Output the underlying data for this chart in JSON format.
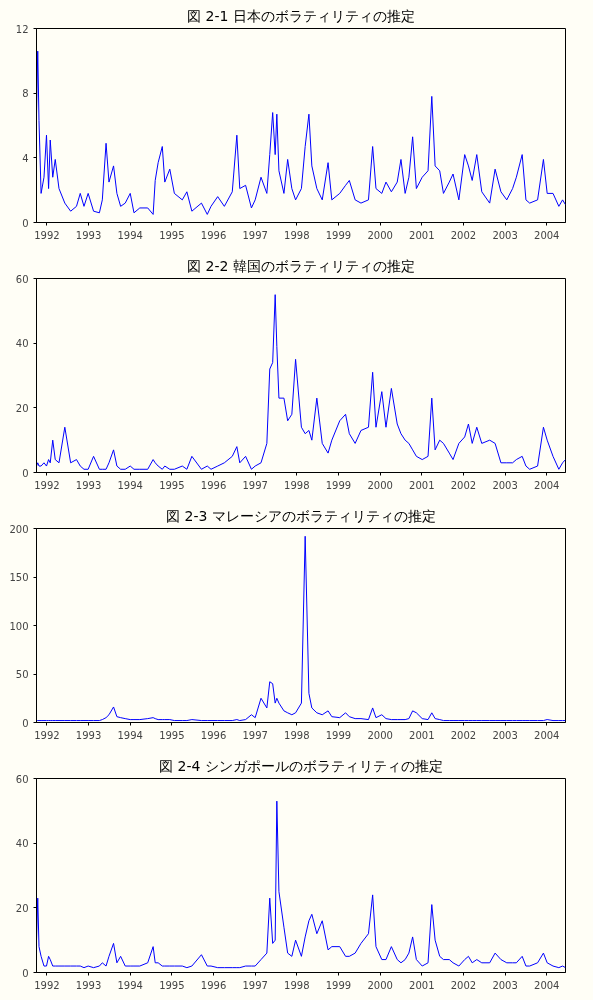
{
  "chart_data": [
    {
      "type": "line",
      "title": "図 2-1 日本のボラティリティの推定",
      "color": "#0000ff",
      "xlim": [
        1991.75,
        2004.45
      ],
      "xticks": [
        1992,
        1993,
        1994,
        1995,
        1996,
        1997,
        1998,
        1999,
        2000,
        2001,
        2002,
        2003,
        2004
      ],
      "ylim": [
        0,
        12
      ],
      "yticks": [
        0,
        4,
        8,
        12
      ],
      "grid": false,
      "x": [
        1991.75,
        1991.78,
        1991.81,
        1991.86,
        1991.93,
        1991.99,
        1992.04,
        1992.08,
        1992.14,
        1992.2,
        1992.29,
        1992.43,
        1992.57,
        1992.71,
        1992.8,
        1992.89,
        1992.99,
        1993.12,
        1993.26,
        1993.33,
        1993.42,
        1993.49,
        1993.6,
        1993.68,
        1993.77,
        1993.88,
        1994.0,
        1994.09,
        1994.23,
        1994.42,
        1994.55,
        1994.6,
        1994.67,
        1994.77,
        1994.83,
        1994.95,
        1995.06,
        1995.25,
        1995.36,
        1995.48,
        1995.71,
        1995.85,
        1995.94,
        1996.1,
        1996.26,
        1996.45,
        1996.56,
        1996.63,
        1996.77,
        1996.91,
        1997.0,
        1997.14,
        1997.28,
        1997.35,
        1997.42,
        1997.48,
        1997.52,
        1997.57,
        1997.69,
        1997.78,
        1997.88,
        1997.97,
        1998.11,
        1998.2,
        1998.29,
        1998.36,
        1998.48,
        1998.61,
        1998.75,
        1998.84,
        1999.03,
        1999.17,
        1999.26,
        1999.4,
        1999.54,
        1999.72,
        1999.82,
        1999.9,
        2000.04,
        2000.14,
        2000.27,
        2000.41,
        2000.5,
        2000.6,
        2000.69,
        2000.78,
        2000.87,
        2001.01,
        2001.15,
        2001.24,
        2001.32,
        2001.43,
        2001.52,
        2001.66,
        2001.75,
        2001.89,
        2002.03,
        2002.12,
        2002.21,
        2002.32,
        2002.44,
        2002.63,
        2002.76,
        2002.9,
        2003.04,
        2003.18,
        2003.27,
        2003.41,
        2003.5,
        2003.59,
        2003.78,
        2003.92,
        2004.01,
        2004.15,
        2004.29,
        2004.38,
        2004.45
      ],
      "values": [
        6.7,
        10.6,
        6.3,
        1.8,
        2.8,
        5.4,
        2.1,
        5.1,
        2.8,
        3.9,
        2.1,
        1.2,
        0.7,
        1.0,
        1.8,
        1.0,
        1.8,
        0.7,
        0.6,
        1.4,
        4.9,
        2.5,
        3.5,
        1.8,
        1.0,
        1.2,
        1.8,
        0.6,
        0.9,
        0.9,
        0.5,
        2.6,
        3.7,
        4.7,
        2.5,
        3.3,
        1.8,
        1.4,
        1.9,
        0.7,
        1.2,
        0.5,
        1.0,
        1.6,
        1.0,
        1.9,
        5.4,
        2.1,
        2.3,
        0.9,
        1.4,
        2.8,
        1.8,
        4.2,
        6.8,
        4.2,
        6.7,
        3.2,
        1.8,
        3.9,
        2.1,
        1.4,
        2.1,
        4.7,
        6.7,
        3.5,
        2.1,
        1.4,
        3.7,
        1.4,
        1.8,
        2.3,
        2.6,
        1.4,
        1.2,
        1.4,
        4.7,
        2.1,
        1.8,
        2.5,
        1.9,
        2.5,
        3.9,
        1.8,
        2.8,
        5.3,
        2.1,
        2.8,
        3.2,
        7.8,
        3.5,
        3.2,
        1.8,
        2.5,
        3.0,
        1.4,
        4.2,
        3.5,
        2.6,
        4.2,
        1.9,
        1.2,
        3.3,
        1.9,
        1.4,
        2.1,
        2.8,
        4.2,
        1.4,
        1.2,
        1.4,
        3.9,
        1.8,
        1.8,
        1.0,
        1.4,
        1.1
      ]
    },
    {
      "type": "line",
      "title": "図 2-2 韓国のボラティリティの推定",
      "color": "#0000ff",
      "xlim": [
        1991.75,
        2004.45
      ],
      "xticks": [
        1992,
        1993,
        1994,
        1995,
        1996,
        1997,
        1998,
        1999,
        2000,
        2001,
        2002,
        2003,
        2004
      ],
      "ylim": [
        0,
        60
      ],
      "yticks": [
        0,
        20,
        40,
        60
      ],
      "grid": false,
      "x": [
        1991.75,
        1991.78,
        1991.81,
        1991.86,
        1991.93,
        1991.99,
        1992.04,
        1992.08,
        1992.14,
        1992.2,
        1992.29,
        1992.43,
        1992.57,
        1992.71,
        1992.8,
        1992.89,
        1992.99,
        1993.12,
        1993.26,
        1993.33,
        1993.42,
        1993.49,
        1993.6,
        1993.68,
        1993.77,
        1993.88,
        1994.0,
        1994.09,
        1994.23,
        1994.42,
        1994.55,
        1994.6,
        1994.67,
        1994.77,
        1994.83,
        1994.95,
        1995.06,
        1995.25,
        1995.36,
        1995.48,
        1995.71,
        1995.85,
        1995.94,
        1996.1,
        1996.26,
        1996.45,
        1996.56,
        1996.63,
        1996.77,
        1996.91,
        1997.0,
        1997.14,
        1997.28,
        1997.35,
        1997.42,
        1997.48,
        1997.52,
        1997.57,
        1997.69,
        1997.78,
        1997.88,
        1997.97,
        1998.11,
        1998.2,
        1998.29,
        1998.36,
        1998.48,
        1998.61,
        1998.75,
        1998.84,
        1999.03,
        1999.17,
        1999.26,
        1999.4,
        1999.54,
        1999.72,
        1999.82,
        1999.9,
        2000.04,
        2000.14,
        2000.27,
        2000.41,
        2000.5,
        2000.6,
        2000.69,
        2000.78,
        2000.87,
        2001.01,
        2001.15,
        2001.24,
        2001.32,
        2001.43,
        2001.52,
        2001.66,
        2001.75,
        2001.89,
        2002.03,
        2002.12,
        2002.21,
        2002.32,
        2002.44,
        2002.63,
        2002.76,
        2002.9,
        2003.04,
        2003.18,
        2003.27,
        2003.41,
        2003.5,
        2003.59,
        2003.78,
        2003.92,
        2004.01,
        2004.15,
        2004.29,
        2004.38,
        2004.45
      ],
      "values": [
        2,
        3,
        2,
        2,
        3,
        2,
        4,
        3,
        10,
        4,
        3,
        14,
        3,
        4,
        2,
        1,
        1,
        5,
        1,
        1,
        1,
        3,
        7,
        2,
        1,
        1,
        2,
        1,
        1,
        1,
        4,
        3,
        2,
        1,
        2,
        1,
        1,
        2,
        1,
        5,
        1,
        2,
        1,
        2,
        3,
        5,
        8,
        3,
        5,
        1,
        2,
        3,
        9,
        32,
        34,
        55,
        39,
        23,
        23,
        16,
        18,
        35,
        14,
        12,
        13,
        10,
        23,
        9,
        6,
        10,
        16,
        18,
        12,
        9,
        13,
        14,
        31,
        14,
        25,
        14,
        26,
        15,
        12,
        10,
        9,
        7,
        5,
        4,
        5,
        23,
        7,
        10,
        9,
        6,
        4,
        9,
        11,
        15,
        9,
        14,
        9,
        10,
        9,
        3,
        3,
        3,
        4,
        5,
        2,
        1,
        2,
        14,
        10,
        5,
        1,
        3,
        4
      ]
    },
    {
      "type": "line",
      "title": "図 2-3 マレーシアのボラティリティの推定",
      "color": "#0000ff",
      "xlim": [
        1991.75,
        2004.45
      ],
      "xticks": [
        1992,
        1993,
        1994,
        1995,
        1996,
        1997,
        1998,
        1999,
        2000,
        2001,
        2002,
        2003,
        2004
      ],
      "ylim": [
        0,
        200
      ],
      "yticks": [
        0,
        50,
        100,
        150,
        200
      ],
      "grid": false,
      "x": [
        1991.75,
        1991.78,
        1991.81,
        1991.86,
        1991.93,
        1991.99,
        1992.04,
        1992.08,
        1992.14,
        1992.2,
        1992.29,
        1992.43,
        1992.57,
        1992.71,
        1992.8,
        1992.89,
        1992.99,
        1993.12,
        1993.26,
        1993.33,
        1993.42,
        1993.49,
        1993.6,
        1993.68,
        1993.77,
        1993.88,
        1994.0,
        1994.09,
        1994.23,
        1994.42,
        1994.55,
        1994.6,
        1994.67,
        1994.77,
        1994.83,
        1994.95,
        1995.06,
        1995.25,
        1995.36,
        1995.48,
        1995.71,
        1995.85,
        1995.94,
        1996.1,
        1996.26,
        1996.45,
        1996.56,
        1996.63,
        1996.77,
        1996.91,
        1997.0,
        1997.14,
        1997.28,
        1997.35,
        1997.42,
        1997.48,
        1997.52,
        1997.57,
        1997.69,
        1997.78,
        1997.88,
        1997.97,
        1998.11,
        1998.2,
        1998.29,
        1998.36,
        1998.48,
        1998.61,
        1998.75,
        1998.84,
        1999.03,
        1999.17,
        1999.26,
        1999.4,
        1999.54,
        1999.72,
        1999.82,
        1999.9,
        2000.04,
        2000.14,
        2000.27,
        2000.41,
        2000.5,
        2000.6,
        2000.69,
        2000.78,
        2000.87,
        2001.01,
        2001.15,
        2001.24,
        2001.32,
        2001.43,
        2001.52,
        2001.66,
        2001.75,
        2001.89,
        2002.03,
        2002.12,
        2002.21,
        2002.32,
        2002.44,
        2002.63,
        2002.76,
        2002.9,
        2003.04,
        2003.18,
        2003.27,
        2003.41,
        2003.5,
        2003.59,
        2003.78,
        2003.92,
        2004.01,
        2004.15,
        2004.29,
        2004.38,
        2004.45
      ],
      "values": [
        2,
        2,
        2,
        2,
        2,
        2,
        2,
        2,
        2,
        2,
        2,
        2,
        2,
        2,
        2,
        2,
        2,
        2,
        2,
        3,
        5,
        8,
        16,
        6,
        5,
        4,
        3,
        3,
        3,
        4,
        5,
        4,
        3,
        3,
        3,
        3,
        2,
        2,
        2,
        3,
        2,
        2,
        2,
        2,
        2,
        2,
        3,
        2,
        3,
        8,
        5,
        25,
        15,
        42,
        40,
        20,
        25,
        20,
        12,
        10,
        8,
        10,
        20,
        192,
        30,
        15,
        10,
        8,
        12,
        6,
        5,
        10,
        6,
        4,
        4,
        3,
        15,
        5,
        8,
        4,
        3,
        3,
        3,
        3,
        4,
        12,
        10,
        4,
        3,
        10,
        4,
        3,
        2,
        2,
        2,
        2,
        2,
        2,
        2,
        2,
        2,
        2,
        2,
        2,
        2,
        2,
        2,
        2,
        2,
        2,
        2,
        2,
        3,
        2,
        2,
        2,
        2
      ]
    },
    {
      "type": "line",
      "title": "図 2-4 シンガポールのボラティリティの推定",
      "color": "#0000ff",
      "xlim": [
        1991.75,
        2004.45
      ],
      "xticks": [
        1992,
        1993,
        1994,
        1995,
        1996,
        1997,
        1998,
        1999,
        2000,
        2001,
        2002,
        2003,
        2004
      ],
      "ylim": [
        0,
        60
      ],
      "yticks": [
        0,
        20,
        40,
        60
      ],
      "grid": false,
      "x": [
        1991.75,
        1991.78,
        1991.81,
        1991.86,
        1991.93,
        1991.99,
        1992.04,
        1992.08,
        1992.14,
        1992.2,
        1992.29,
        1992.43,
        1992.57,
        1992.71,
        1992.8,
        1992.89,
        1992.99,
        1993.12,
        1993.26,
        1993.33,
        1993.42,
        1993.49,
        1993.6,
        1993.68,
        1993.77,
        1993.88,
        1994.0,
        1994.09,
        1994.23,
        1994.42,
        1994.55,
        1994.6,
        1994.67,
        1994.77,
        1994.83,
        1994.95,
        1995.06,
        1995.25,
        1995.36,
        1995.48,
        1995.71,
        1995.85,
        1995.94,
        1996.1,
        1996.26,
        1996.45,
        1996.56,
        1996.63,
        1996.77,
        1996.91,
        1997.0,
        1997.14,
        1997.28,
        1997.35,
        1997.42,
        1997.48,
        1997.52,
        1997.57,
        1997.69,
        1997.78,
        1997.88,
        1997.97,
        1998.11,
        1998.2,
        1998.29,
        1998.36,
        1998.48,
        1998.61,
        1998.75,
        1998.84,
        1999.03,
        1999.17,
        1999.26,
        1999.4,
        1999.54,
        1999.72,
        1999.82,
        1999.9,
        2000.04,
        2000.14,
        2000.27,
        2000.41,
        2000.5,
        2000.6,
        2000.69,
        2000.78,
        2000.87,
        2001.01,
        2001.15,
        2001.24,
        2001.32,
        2001.43,
        2001.52,
        2001.66,
        2001.75,
        2001.89,
        2002.03,
        2002.12,
        2002.21,
        2002.32,
        2002.44,
        2002.63,
        2002.76,
        2002.9,
        2003.04,
        2003.18,
        2003.27,
        2003.41,
        2003.5,
        2003.59,
        2003.78,
        2003.92,
        2004.01,
        2004.15,
        2004.29,
        2004.38,
        2004.45
      ],
      "values": [
        10,
        23,
        8,
        5,
        2,
        2,
        5,
        4,
        2,
        2,
        2,
        2,
        2,
        2,
        2,
        1.5,
        2,
        1.5,
        2,
        3,
        2,
        5,
        9,
        3,
        5,
        2,
        2,
        2,
        2,
        3,
        8,
        3,
        3,
        2,
        2,
        2,
        2,
        2,
        1.5,
        2,
        5.5,
        2,
        2,
        1.5,
        1.5,
        1.5,
        1.5,
        1.5,
        2,
        2,
        2,
        4,
        6,
        23,
        9,
        10,
        53,
        25,
        14,
        6,
        5,
        10,
        5,
        11,
        16,
        18,
        12,
        16,
        7,
        8,
        8,
        5,
        5,
        6,
        9,
        12,
        24,
        8,
        4,
        4,
        8,
        4,
        3,
        4,
        6,
        11,
        4,
        2,
        3,
        21,
        10,
        5,
        4,
        4,
        3,
        2,
        4,
        5,
        3,
        4,
        3,
        3,
        6,
        4,
        3,
        3,
        3,
        5,
        2,
        2,
        3,
        6,
        3,
        2,
        1.5,
        2,
        1.5
      ]
    }
  ]
}
